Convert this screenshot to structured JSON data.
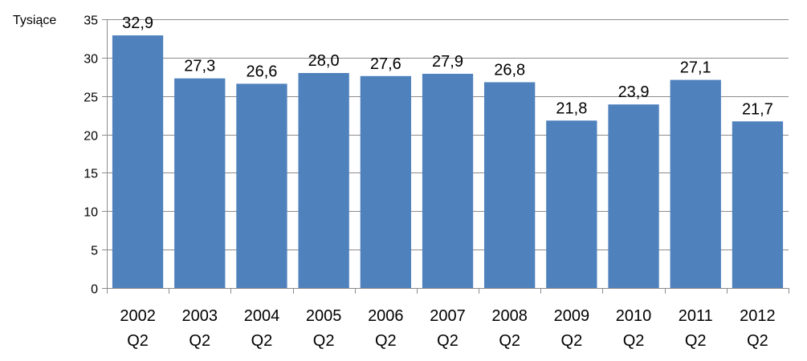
{
  "chart_data": {
    "type": "bar",
    "unit_label": "Tysiące",
    "categories": [
      [
        "2002",
        "Q2"
      ],
      [
        "2003",
        "Q2"
      ],
      [
        "2004",
        "Q2"
      ],
      [
        "2005",
        "Q2"
      ],
      [
        "2006",
        "Q2"
      ],
      [
        "2007",
        "Q2"
      ],
      [
        "2008",
        "Q2"
      ],
      [
        "2009",
        "Q2"
      ],
      [
        "2010",
        "Q2"
      ],
      [
        "2011",
        "Q2"
      ],
      [
        "2012",
        "Q2"
      ]
    ],
    "values": [
      32.9,
      27.3,
      26.6,
      28.0,
      27.6,
      27.9,
      26.8,
      21.8,
      23.9,
      27.1,
      21.7
    ],
    "value_labels": [
      "32,9",
      "27,3",
      "26,6",
      "28,0",
      "27,6",
      "27,9",
      "26,8",
      "21,8",
      "23,9",
      "27,1",
      "21,7"
    ],
    "ylim": [
      0,
      35
    ],
    "yticks": [
      "0",
      "5",
      "10",
      "15",
      "20",
      "25",
      "30",
      "35"
    ],
    "grid": true,
    "legend": "none",
    "bar_color": "#4f81bd"
  }
}
